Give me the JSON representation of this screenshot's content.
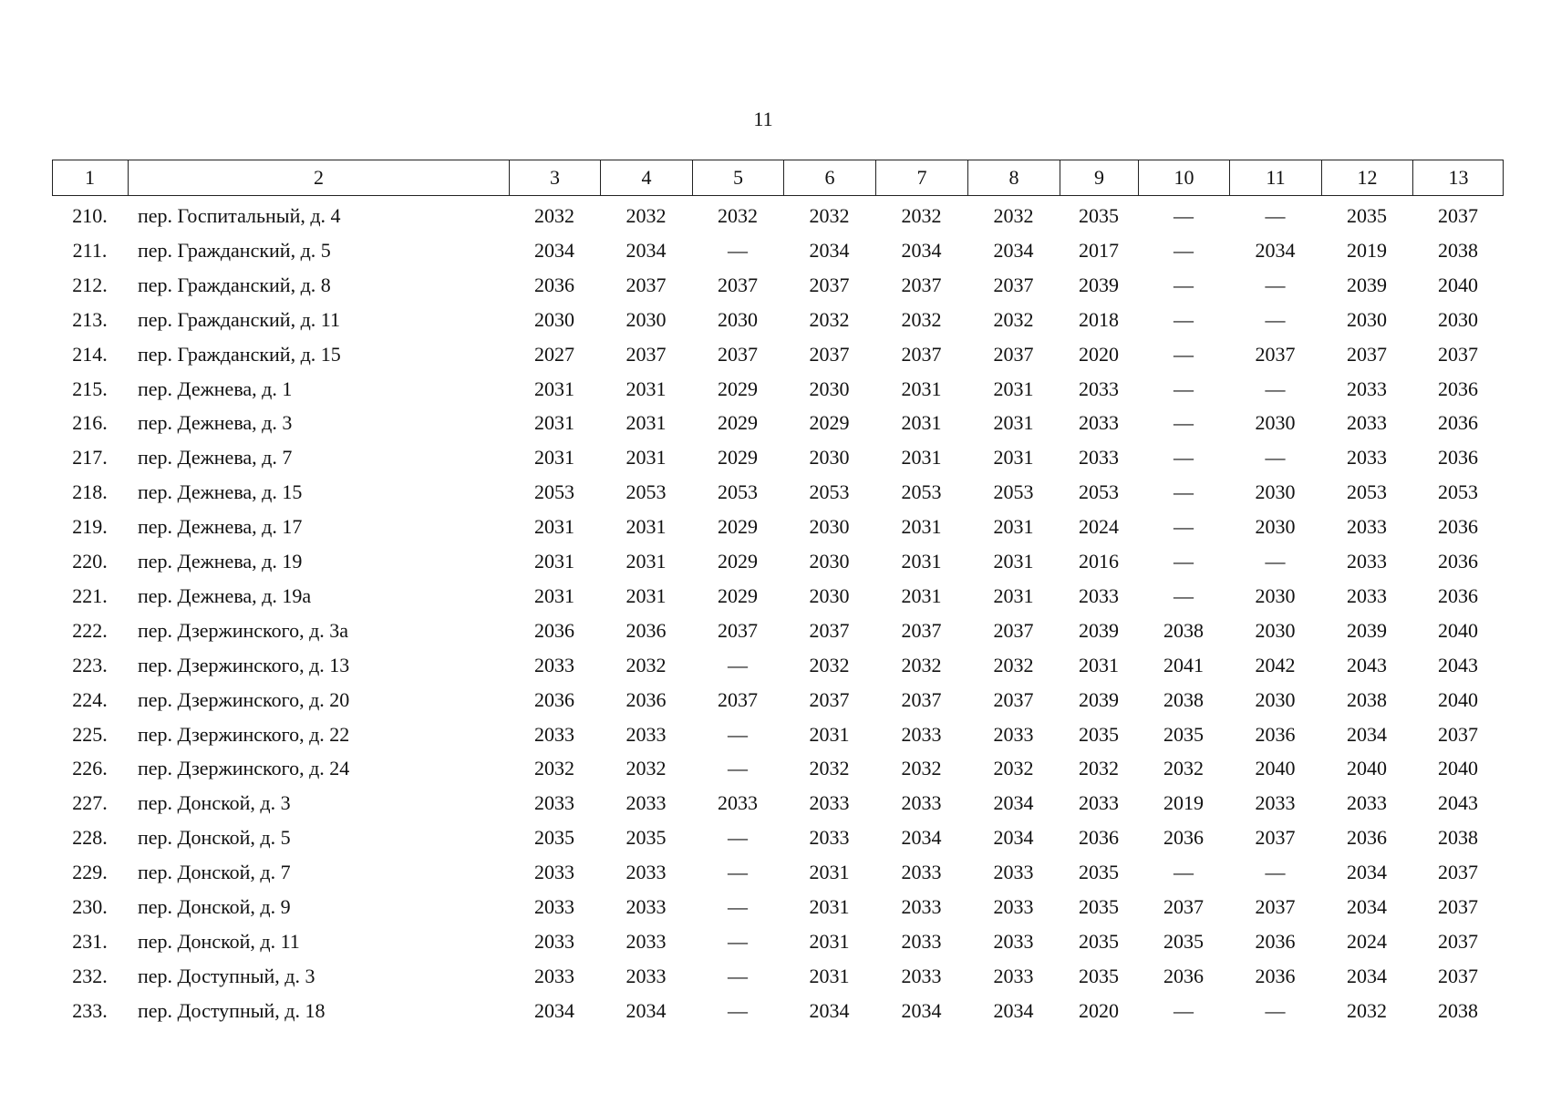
{
  "page_number": "11",
  "table": {
    "header": [
      "1",
      "2",
      "3",
      "4",
      "5",
      "6",
      "7",
      "8",
      "9",
      "10",
      "11",
      "12",
      "13"
    ],
    "rows": [
      [
        "210.",
        "пер. Госпитальный, д. 4",
        "2032",
        "2032",
        "2032",
        "2032",
        "2032",
        "2032",
        "2035",
        "—",
        "—",
        "2035",
        "2037"
      ],
      [
        "211.",
        "пер. Гражданский, д. 5",
        "2034",
        "2034",
        "—",
        "2034",
        "2034",
        "2034",
        "2017",
        "—",
        "2034",
        "2019",
        "2038"
      ],
      [
        "212.",
        "пер. Гражданский, д. 8",
        "2036",
        "2037",
        "2037",
        "2037",
        "2037",
        "2037",
        "2039",
        "—",
        "—",
        "2039",
        "2040"
      ],
      [
        "213.",
        "пер. Гражданский, д. 11",
        "2030",
        "2030",
        "2030",
        "2032",
        "2032",
        "2032",
        "2018",
        "—",
        "—",
        "2030",
        "2030"
      ],
      [
        "214.",
        "пер. Гражданский, д. 15",
        "2027",
        "2037",
        "2037",
        "2037",
        "2037",
        "2037",
        "2020",
        "—",
        "2037",
        "2037",
        "2037"
      ],
      [
        "215.",
        "пер. Дежнева, д. 1",
        "2031",
        "2031",
        "2029",
        "2030",
        "2031",
        "2031",
        "2033",
        "—",
        "—",
        "2033",
        "2036"
      ],
      [
        "216.",
        "пер. Дежнева, д. 3",
        "2031",
        "2031",
        "2029",
        "2029",
        "2031",
        "2031",
        "2033",
        "—",
        "2030",
        "2033",
        "2036"
      ],
      [
        "217.",
        "пер. Дежнева, д. 7",
        "2031",
        "2031",
        "2029",
        "2030",
        "2031",
        "2031",
        "2033",
        "—",
        "—",
        "2033",
        "2036"
      ],
      [
        "218.",
        "пер. Дежнева, д. 15",
        "2053",
        "2053",
        "2053",
        "2053",
        "2053",
        "2053",
        "2053",
        "—",
        "2030",
        "2053",
        "2053"
      ],
      [
        "219.",
        "пер. Дежнева, д. 17",
        "2031",
        "2031",
        "2029",
        "2030",
        "2031",
        "2031",
        "2024",
        "—",
        "2030",
        "2033",
        "2036"
      ],
      [
        "220.",
        "пер. Дежнева, д. 19",
        "2031",
        "2031",
        "2029",
        "2030",
        "2031",
        "2031",
        "2016",
        "—",
        "—",
        "2033",
        "2036"
      ],
      [
        "221.",
        "пер. Дежнева, д. 19а",
        "2031",
        "2031",
        "2029",
        "2030",
        "2031",
        "2031",
        "2033",
        "—",
        "2030",
        "2033",
        "2036"
      ],
      [
        "222.",
        "пер. Дзержинского, д. 3а",
        "2036",
        "2036",
        "2037",
        "2037",
        "2037",
        "2037",
        "2039",
        "2038",
        "2030",
        "2039",
        "2040"
      ],
      [
        "223.",
        "пер. Дзержинского, д. 13",
        "2033",
        "2032",
        "—",
        "2032",
        "2032",
        "2032",
        "2031",
        "2041",
        "2042",
        "2043",
        "2043"
      ],
      [
        "224.",
        "пер. Дзержинского, д. 20",
        "2036",
        "2036",
        "2037",
        "2037",
        "2037",
        "2037",
        "2039",
        "2038",
        "2030",
        "2038",
        "2040"
      ],
      [
        "225.",
        "пер. Дзержинского, д. 22",
        "2033",
        "2033",
        "—",
        "2031",
        "2033",
        "2033",
        "2035",
        "2035",
        "2036",
        "2034",
        "2037"
      ],
      [
        "226.",
        "пер. Дзержинского, д. 24",
        "2032",
        "2032",
        "—",
        "2032",
        "2032",
        "2032",
        "2032",
        "2032",
        "2040",
        "2040",
        "2040"
      ],
      [
        "227.",
        "пер. Донской, д. 3",
        "2033",
        "2033",
        "2033",
        "2033",
        "2033",
        "2034",
        "2033",
        "2019",
        "2033",
        "2033",
        "2043"
      ],
      [
        "228.",
        "пер. Донской, д. 5",
        "2035",
        "2035",
        "—",
        "2033",
        "2034",
        "2034",
        "2036",
        "2036",
        "2037",
        "2036",
        "2038"
      ],
      [
        "229.",
        "пер. Донской, д. 7",
        "2033",
        "2033",
        "—",
        "2031",
        "2033",
        "2033",
        "2035",
        "—",
        "—",
        "2034",
        "2037"
      ],
      [
        "230.",
        "пер. Донской, д. 9",
        "2033",
        "2033",
        "—",
        "2031",
        "2033",
        "2033",
        "2035",
        "2037",
        "2037",
        "2034",
        "2037"
      ],
      [
        "231.",
        "пер. Донской, д. 11",
        "2033",
        "2033",
        "—",
        "2031",
        "2033",
        "2033",
        "2035",
        "2035",
        "2036",
        "2024",
        "2037"
      ],
      [
        "232.",
        "пер. Доступный, д. 3",
        "2033",
        "2033",
        "—",
        "2031",
        "2033",
        "2033",
        "2035",
        "2036",
        "2036",
        "2034",
        "2037"
      ],
      [
        "233.",
        "пер. Доступный, д. 18",
        "2034",
        "2034",
        "—",
        "2034",
        "2034",
        "2034",
        "2020",
        "—",
        "—",
        "2032",
        "2038"
      ]
    ]
  }
}
